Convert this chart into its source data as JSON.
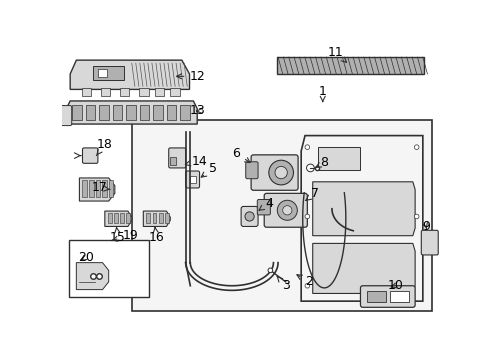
{
  "bg_color": "#f5f5f5",
  "white": "#ffffff",
  "light_gray": "#d8d8d8",
  "mid_gray": "#b0b0b0",
  "dark_gray": "#606060",
  "line_color": "#303030",
  "line_color2": "#555555"
}
